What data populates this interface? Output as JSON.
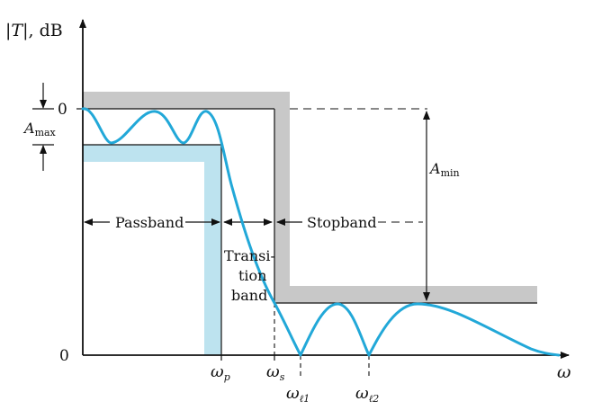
{
  "axes": {
    "y_label_pre": "|",
    "y_label_T": "T",
    "y_label_post": "|, dB",
    "x_label": "ω",
    "y_tick_zero_top": "0",
    "y_tick_zero_bottom": "0"
  },
  "labels": {
    "a_max_main": "A",
    "a_max_sub": "max",
    "a_min_main": "A",
    "a_min_sub": "min",
    "passband": "Passband",
    "stopband": "Stopband",
    "transition_line1": "Transi-",
    "transition_line2": "tion",
    "transition_line3": "band",
    "omega_p_main": "ω",
    "omega_p_sub": "p",
    "omega_s_main": "ω",
    "omega_s_sub": "s",
    "omega_l1_main": "ω",
    "omega_l1_sub": "ℓ1",
    "omega_l2_main": "ω",
    "omega_l2_sub": "ℓ2"
  },
  "colors": {
    "response_curve": "#22a8d8",
    "passband_shade": "#bde3ef",
    "spec_gray": "#c8c8c8"
  }
}
